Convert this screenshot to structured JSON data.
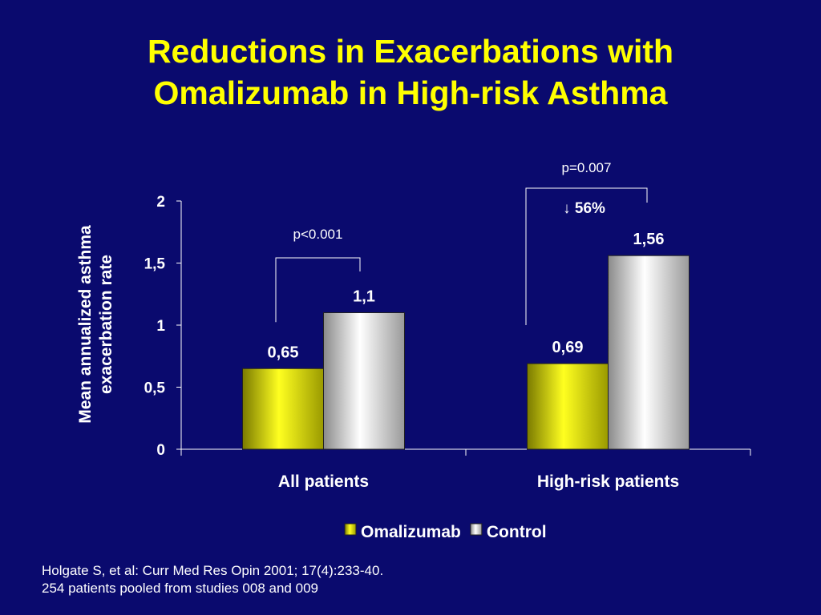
{
  "title": {
    "line1": "Reductions in Exacerbations with",
    "line2": "Omalizumab in High-risk Asthma"
  },
  "colors": {
    "background": "#0a0a6e",
    "title": "#ffff00",
    "text": "#ffffff",
    "omalizumab": "#f2f200",
    "control": "#d8d8d8"
  },
  "chart_data": {
    "type": "bar",
    "categories": [
      "All patients",
      "High-risk patients"
    ],
    "series": [
      {
        "name": "Omalizumab",
        "values": [
          0.65,
          0.69
        ],
        "labels": [
          "0,65",
          "0,69"
        ]
      },
      {
        "name": "Control",
        "values": [
          1.1,
          1.56
        ],
        "labels": [
          "1,1",
          "1,56"
        ]
      }
    ],
    "ylabel_line1": "Mean annualized asthma",
    "ylabel_line2": "exacerbation rate",
    "ylim": [
      0,
      2
    ],
    "yticks": [
      0,
      0.5,
      1,
      1.5,
      2
    ],
    "ytick_labels": [
      "0",
      "0,5",
      "1",
      "1,5",
      "2"
    ],
    "legend_position": "bottom",
    "grid": false,
    "annotations": [
      {
        "category": "All patients",
        "text": "p<0.001"
      },
      {
        "category": "High-risk patients",
        "text": "p=0.007",
        "reduction": "↓ 56%"
      }
    ]
  },
  "footnote": {
    "line1": "Holgate S, et al: Curr Med Res Opin 2001; 17(4):233-40.",
    "line2": "254 patients pooled from studies 008 and 009"
  }
}
